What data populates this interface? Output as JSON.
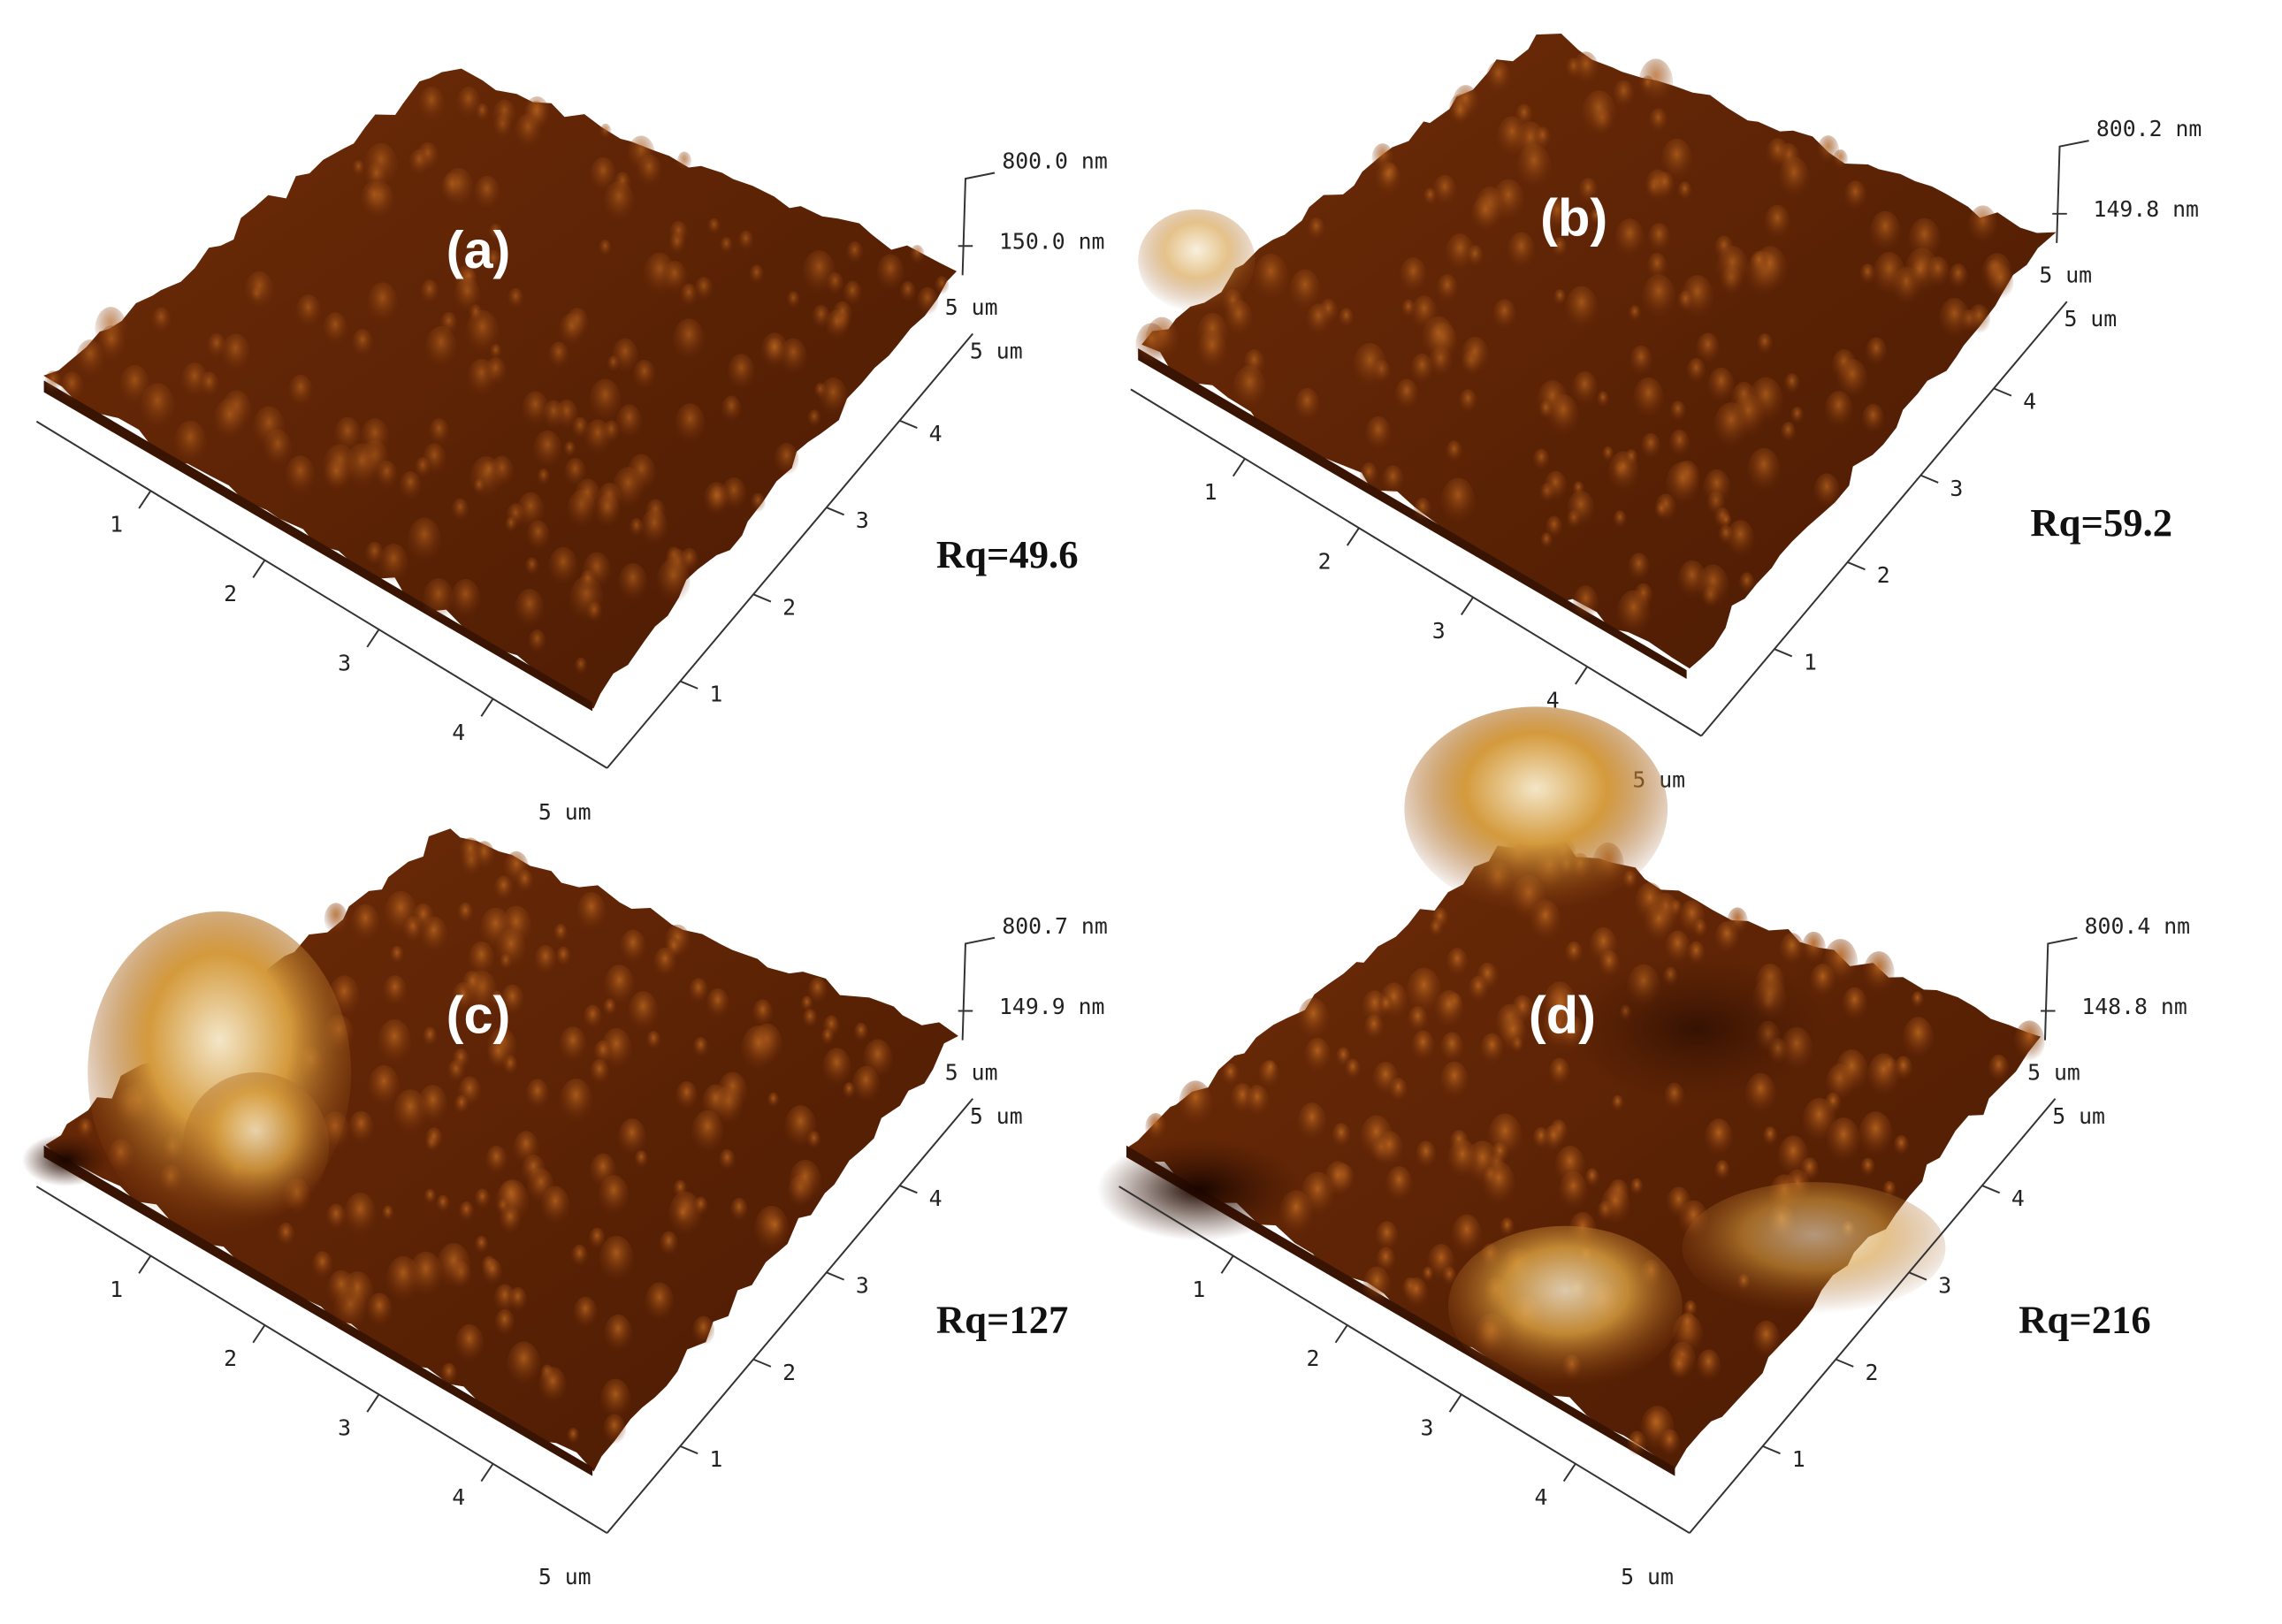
{
  "panels": [
    {
      "label": "(a)",
      "rq": "Rq=49.6",
      "z_top": "800.0 nm",
      "z_mid": "150.0 nm",
      "z_end": "5 um",
      "y_end": "5 um",
      "x_end": "5 um",
      "x_ticks": [
        1,
        2,
        3,
        4
      ],
      "y_ticks": [
        1,
        2,
        3,
        4
      ]
    },
    {
      "label": "(b)",
      "rq": "Rq=59.2",
      "z_top": "800.2 nm",
      "z_mid": "149.8 nm",
      "z_end": "5 um",
      "y_end": "5 um",
      "x_end": "5 um",
      "x_ticks": [
        1,
        2,
        3,
        4
      ],
      "y_ticks": [
        1,
        2,
        3,
        4
      ]
    },
    {
      "label": "(c)",
      "rq": "Rq=127",
      "z_top": "800.7 nm",
      "z_mid": "149.9 nm",
      "z_end": "5 um",
      "y_end": "5 um",
      "x_end": "5 um",
      "x_ticks": [
        1,
        2,
        3,
        4
      ],
      "y_ticks": [
        1,
        2,
        3,
        4
      ]
    },
    {
      "label": "(d)",
      "rq": "Rq=216",
      "z_top": "800.4 nm",
      "z_mid": "148.8 nm",
      "z_end": "5 um",
      "y_end": "5 um",
      "x_end": "5 um",
      "x_ticks": [
        1,
        2,
        3,
        4
      ],
      "y_ticks": [
        1,
        2,
        3,
        4
      ]
    }
  ]
}
